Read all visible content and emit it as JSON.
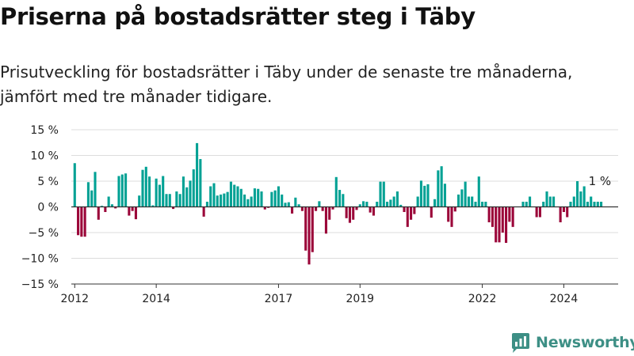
{
  "title": "Priserna på bostadsrätter steg i Täby",
  "subtitle": "Prisutveckling för bostadsrätter i Täby under de senaste tre månaderna, jämfört med tre månader tidigare.",
  "brand": {
    "name": "Newsworthy"
  },
  "colors": {
    "positive": "#00a194",
    "negative": "#9b0539",
    "axis": "#333333",
    "grid": "#dddddd"
  },
  "chart_data": {
    "type": "bar",
    "title": "",
    "xlabel": "",
    "ylabel": "",
    "ylim": [
      -15,
      15
    ],
    "y_ticks": [
      -15,
      -10,
      -5,
      0,
      5,
      10,
      15
    ],
    "y_tick_labels": [
      "−15 %",
      "−10 %",
      "−5 %",
      "0 %",
      "5 %",
      "10 %",
      "15 %"
    ],
    "x_range": [
      "2011-12",
      "2025-05"
    ],
    "x_ticks": [
      {
        "label": "2012",
        "date": "2012-01"
      },
      {
        "label": "2014",
        "date": "2014-01"
      },
      {
        "label": "2017",
        "date": "2017-01"
      },
      {
        "label": "2019",
        "date": "2019-01"
      },
      {
        "label": "2022",
        "date": "2022-01"
      },
      {
        "label": "2024",
        "date": "2024-01"
      }
    ],
    "grid": true,
    "annotation": "1 %",
    "start_month": "2012-01",
    "values": [
      8.5,
      -5.5,
      -5.8,
      -5.8,
      4.8,
      3.2,
      6.8,
      -2.5,
      0.2,
      -1.0,
      2.0,
      0.5,
      -0.3,
      6.0,
      6.3,
      6.5,
      -1.7,
      -0.8,
      -2.4,
      2.2,
      7.2,
      7.8,
      5.9,
      0.3,
      5.5,
      4.3,
      6.0,
      2.5,
      2.5,
      -0.4,
      3.0,
      2.5,
      5.9,
      3.8,
      5.1,
      7.3,
      12.4,
      9.3,
      -1.9,
      1.0,
      4.0,
      4.6,
      2.2,
      2.4,
      2.6,
      2.9,
      4.9,
      4.3,
      4.0,
      3.5,
      2.4,
      1.5,
      2.0,
      3.6,
      3.5,
      3.0,
      -0.5,
      -0.2,
      2.9,
      3.2,
      4.0,
      2.4,
      0.8,
      0.9,
      -1.3,
      1.8,
      0.5,
      -0.8,
      -8.5,
      -11.2,
      -8.8,
      -0.8,
      1.1,
      -0.8,
      -5.2,
      -2.5,
      -0.5,
      5.8,
      3.3,
      2.5,
      -2.2,
      -3.1,
      -2.5,
      -0.6,
      0.5,
      1.1,
      1.0,
      -1.1,
      -1.7,
      1.0,
      4.9,
      4.9,
      1.0,
      1.4,
      2.0,
      3.0,
      0.4,
      -1.0,
      -3.9,
      -2.5,
      -1.4,
      2.0,
      5.1,
      4.1,
      4.4,
      -2.1,
      1.5,
      7.1,
      7.9,
      4.5,
      -2.9,
      -3.9,
      -0.9,
      2.4,
      3.4,
      4.9,
      2.0,
      2.0,
      1.0,
      5.9,
      1.0,
      1.0,
      -3.0,
      -3.9,
      -6.9,
      -6.9,
      -5.0,
      -7.0,
      -2.9,
      -3.9,
      0.0,
      0.0,
      1.0,
      1.0,
      2.0,
      0.0,
      -2.0,
      -2.0,
      1.0,
      3.0,
      2.0,
      2.0,
      0.0,
      -3.0,
      -1.0,
      -2.0,
      1.0,
      2.0,
      5.0,
      3.0,
      4.0,
      1.0,
      2.0,
      1.0,
      1.0,
      1.0
    ]
  }
}
